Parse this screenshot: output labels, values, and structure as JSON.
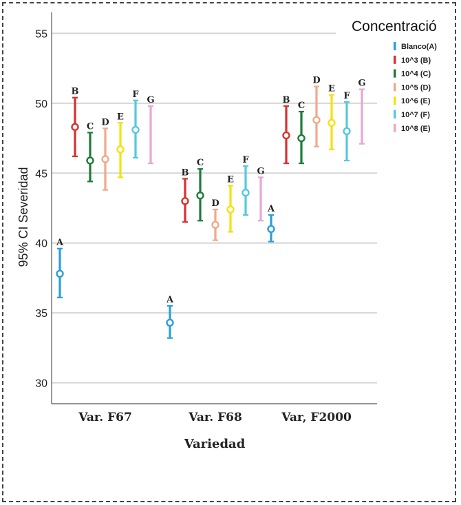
{
  "chart_data": {
    "type": "errorbar",
    "xlabel": "Variedad",
    "ylabel": "95% CI Severidad",
    "ylim": [
      28.5,
      56.5
    ],
    "yticks": [
      30,
      35,
      40,
      45,
      50,
      55
    ],
    "grid": true,
    "categories": [
      "Var. F67",
      "Var. F68",
      "Var, F2000"
    ],
    "legend": {
      "title": "Concentració",
      "position": "top-right"
    },
    "series": [
      {
        "name": "Blanco(A)",
        "color": "#2a9fd8",
        "mean": [
          37.8,
          34.3,
          41.0
        ],
        "lower": [
          36.1,
          33.2,
          40.1
        ],
        "upper": [
          39.6,
          35.5,
          42.0
        ],
        "letters": [
          "A",
          "A",
          "A"
        ]
      },
      {
        "name": "10^3 (B)",
        "color": "#d9302f",
        "mean": [
          48.3,
          43.0,
          47.7
        ],
        "lower": [
          46.2,
          41.5,
          45.7
        ],
        "upper": [
          50.4,
          44.6,
          49.8
        ],
        "letters": [
          "B",
          "B",
          "B"
        ]
      },
      {
        "name": "10^4 (C)",
        "color": "#1e7a3a",
        "mean": [
          45.9,
          43.4,
          47.5
        ],
        "lower": [
          44.4,
          41.6,
          45.7
        ],
        "upper": [
          47.9,
          45.3,
          49.4
        ],
        "letters": [
          "C",
          "C",
          "C"
        ]
      },
      {
        "name": "10^5 (D)",
        "color": "#f0a98a",
        "mean": [
          46.0,
          41.3,
          48.8
        ],
        "lower": [
          43.8,
          40.2,
          46.9
        ],
        "upper": [
          48.2,
          42.4,
          51.2
        ],
        "letters": [
          "D",
          "D",
          "D"
        ]
      },
      {
        "name": "10^6 (E)",
        "color": "#f2e20f",
        "mean": [
          46.7,
          42.4,
          48.6
        ],
        "lower": [
          44.7,
          40.8,
          46.7
        ],
        "upper": [
          48.6,
          44.1,
          50.6
        ],
        "letters": [
          "E",
          "E",
          "E"
        ]
      },
      {
        "name": "10^7 (F)",
        "color": "#55c8dd",
        "mean": [
          48.1,
          43.6,
          48.0
        ],
        "lower": [
          46.1,
          42.0,
          45.9
        ],
        "upper": [
          50.2,
          45.5,
          50.1
        ],
        "letters": [
          "F",
          "F",
          "F"
        ]
      },
      {
        "name": "10^8 (E)",
        "color": "#e6a8cf",
        "mean": [
          null,
          null,
          null
        ],
        "lower": [
          45.7,
          41.6,
          47.1
        ],
        "upper": [
          49.8,
          44.7,
          51.0
        ],
        "letters": [
          "G",
          "G",
          "G"
        ]
      }
    ]
  }
}
